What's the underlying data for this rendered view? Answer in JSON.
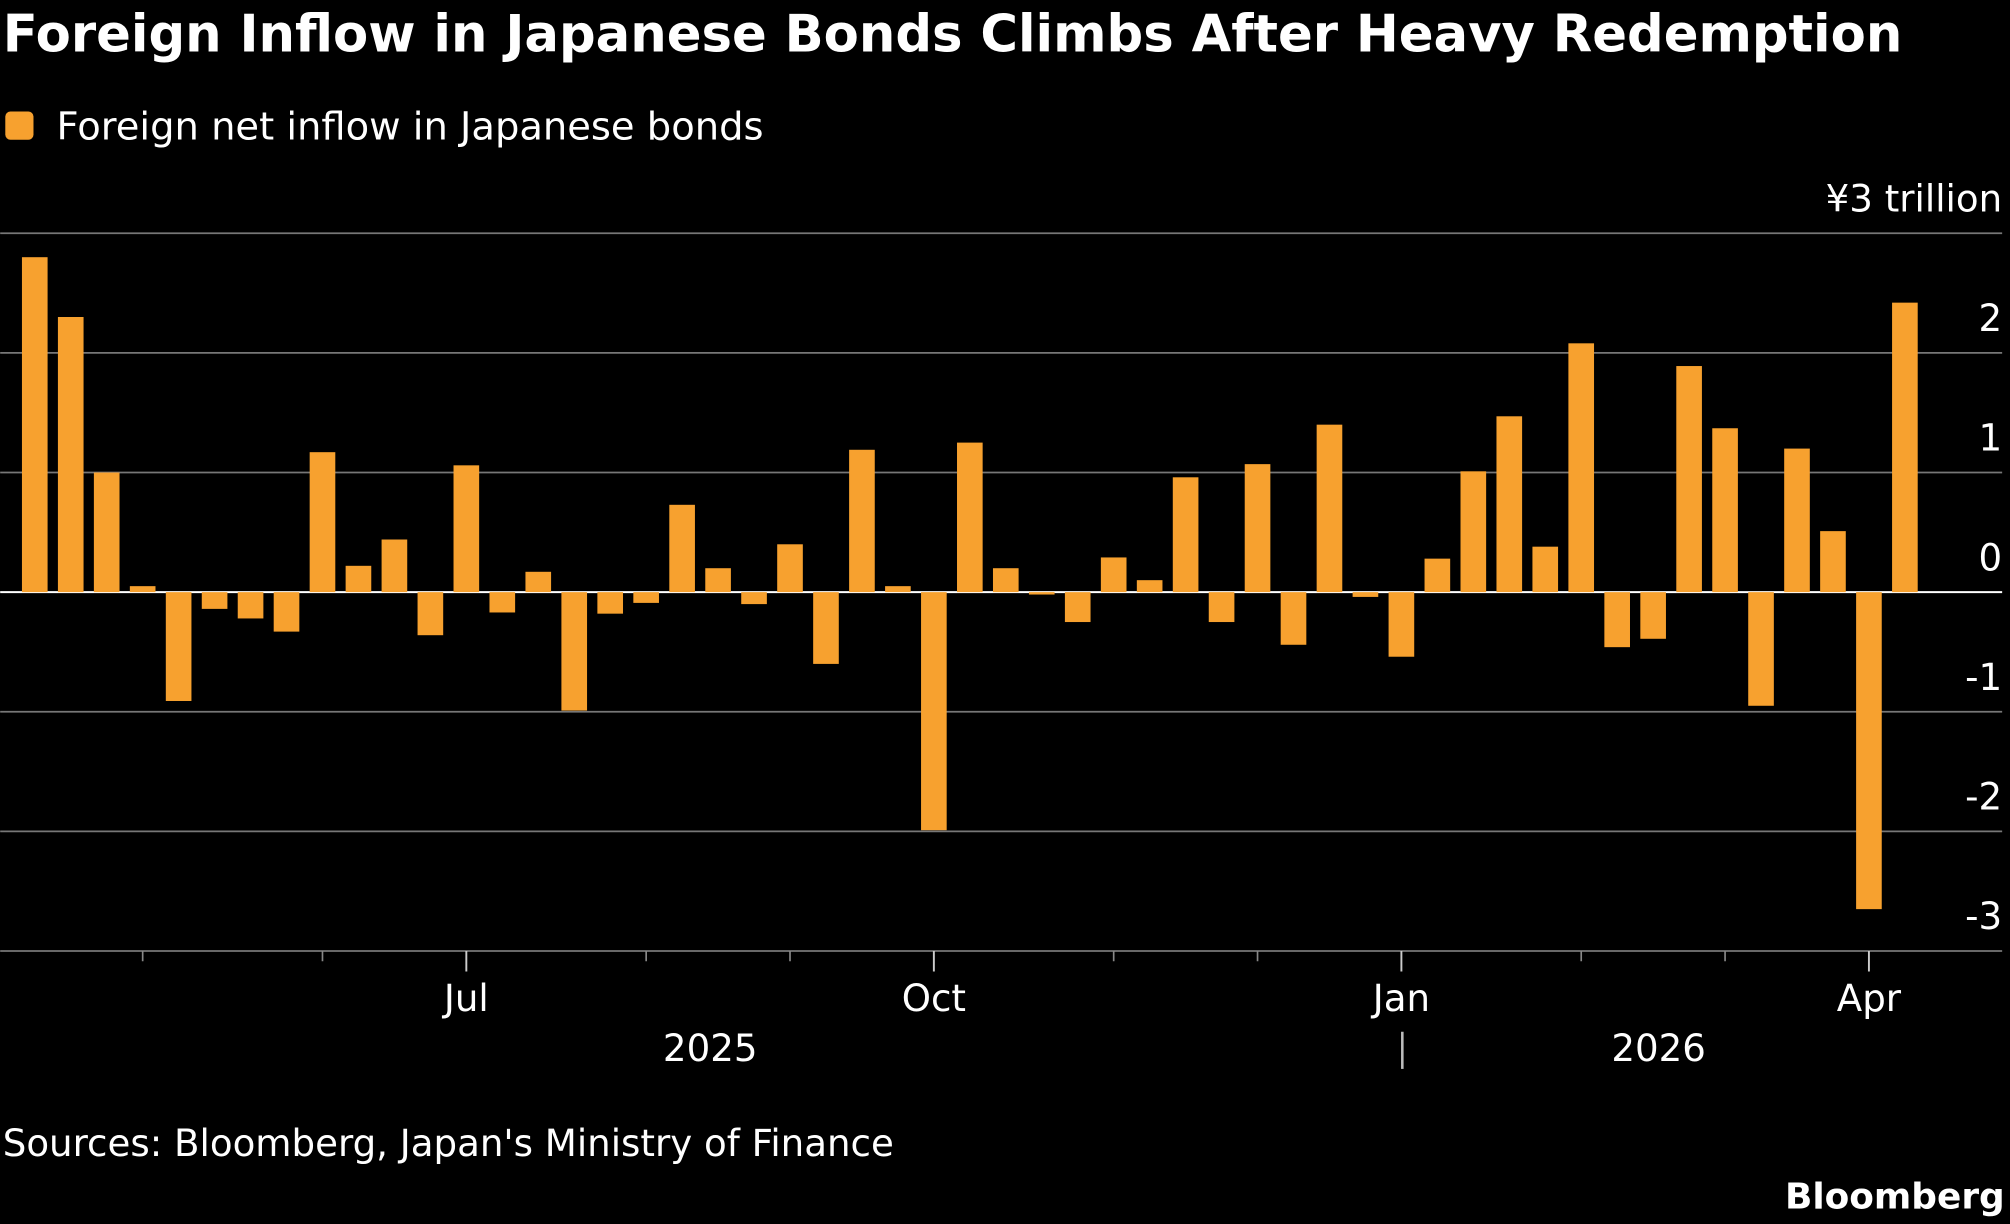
{
  "chart_data": {
    "type": "bar",
    "title": "Foreign Inflow in Japanese Bonds Climbs After Heavy Redemption",
    "series": [
      {
        "name": "Foreign net inflow in Japanese bonds",
        "color": "#f7a12f",
        "values": [
          2.8,
          2.3,
          1.0,
          0.05,
          -0.91,
          -0.14,
          -0.22,
          -0.33,
          1.17,
          0.22,
          0.44,
          -0.36,
          1.06,
          -0.17,
          0.17,
          -0.99,
          -0.18,
          -0.09,
          0.73,
          0.2,
          -0.1,
          0.4,
          -0.6,
          1.19,
          0.05,
          -1.99,
          1.25,
          0.2,
          -0.02,
          -0.25,
          0.29,
          0.1,
          0.96,
          -0.25,
          1.07,
          -0.44,
          1.4,
          -0.04,
          -0.54,
          0.28,
          1.01,
          1.47,
          0.38,
          2.08,
          -0.46,
          -0.39,
          1.89,
          1.37,
          -0.95,
          1.2,
          0.51,
          -2.65,
          2.42
        ]
      }
    ],
    "categories": [
      null,
      null,
      null,
      null,
      null,
      null,
      null,
      null,
      null,
      null,
      null,
      null,
      "Jul",
      null,
      null,
      null,
      null,
      null,
      null,
      null,
      null,
      null,
      null,
      null,
      null,
      "Oct",
      null,
      null,
      null,
      null,
      null,
      null,
      null,
      null,
      null,
      null,
      null,
      null,
      "Jan",
      null,
      null,
      null,
      null,
      null,
      null,
      null,
      null,
      null,
      null,
      null,
      null,
      "Apr",
      null
    ],
    "year_labels": [
      "2025",
      "2026"
    ],
    "ylim": [
      -3,
      3
    ],
    "yticks": [
      {
        "value": 3,
        "label": "¥3 trillion"
      },
      2,
      1,
      0,
      -1,
      -2,
      -3
    ],
    "grid": true,
    "source": "Sources: Bloomberg, Japan's Ministry of Finance",
    "brand": "Bloomberg"
  }
}
